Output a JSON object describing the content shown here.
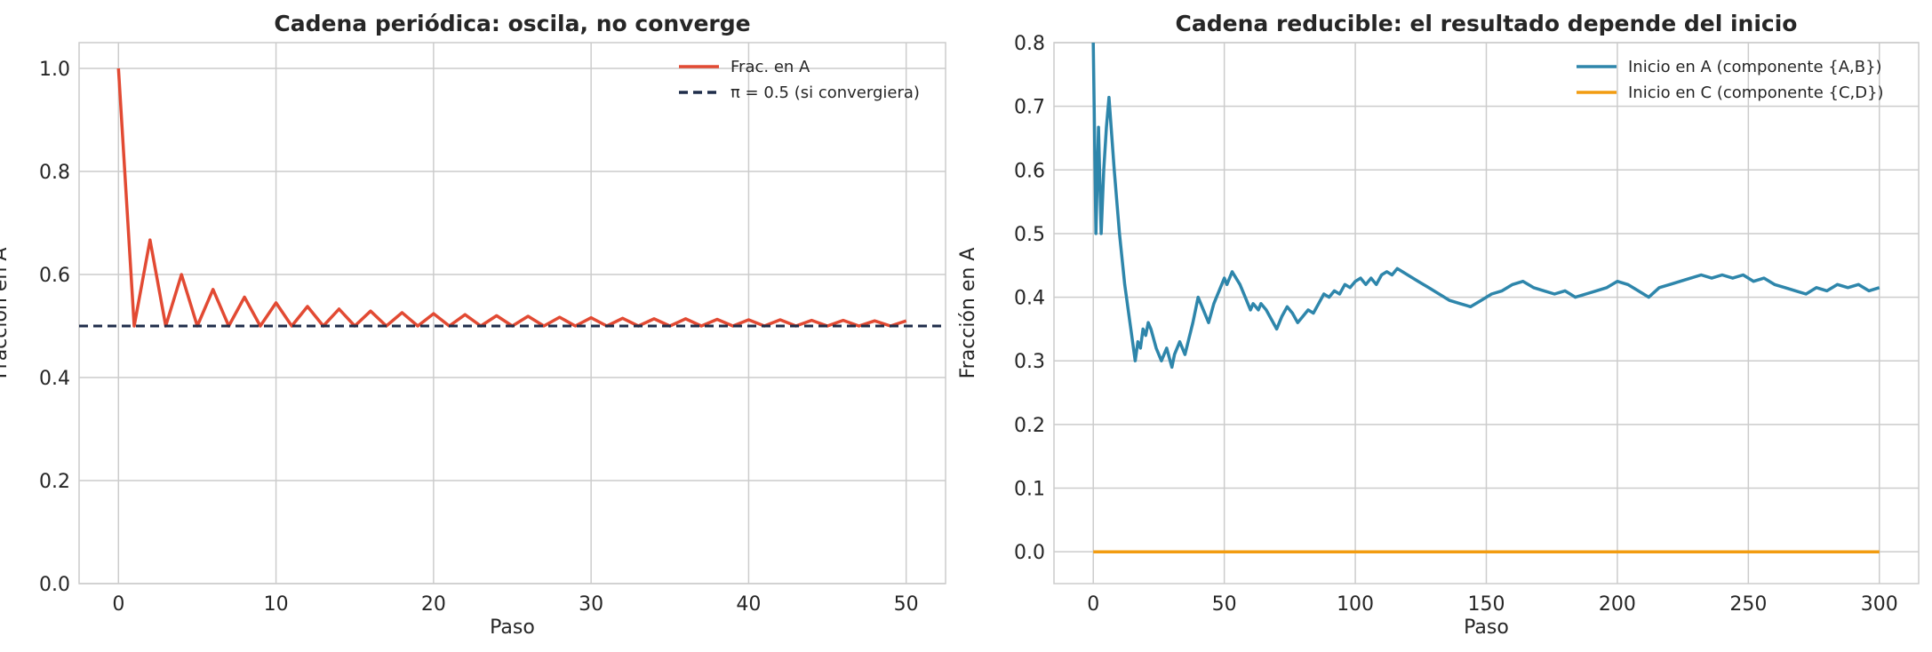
{
  "chart_data": [
    {
      "type": "line",
      "title": "Cadena periódica: oscila, no converge",
      "xlabel": "Paso",
      "ylabel": "Fracción en A",
      "xlim": [
        -2.5,
        52.5
      ],
      "ylim": [
        0.0,
        1.05
      ],
      "xticks": [
        0,
        10,
        20,
        30,
        40,
        50
      ],
      "yticks": [
        0.0,
        0.2,
        0.4,
        0.6,
        0.8,
        1.0
      ],
      "xtick_labels": [
        "0",
        "10",
        "20",
        "30",
        "40",
        "50"
      ],
      "ytick_labels": [
        "0.0",
        "0.2",
        "0.4",
        "0.6",
        "0.8",
        "1.0"
      ],
      "grid": true,
      "legend_position": "top-right",
      "series": [
        {
          "name": "Frac. en A",
          "color": "#e24a33",
          "style": "solid",
          "x": [
            0,
            1,
            2,
            3,
            4,
            5,
            6,
            7,
            8,
            9,
            10,
            11,
            12,
            13,
            14,
            15,
            16,
            17,
            18,
            19,
            20,
            21,
            22,
            23,
            24,
            25,
            26,
            27,
            28,
            29,
            30,
            31,
            32,
            33,
            34,
            35,
            36,
            37,
            38,
            39,
            40,
            41,
            42,
            43,
            44,
            45,
            46,
            47,
            48,
            49,
            50
          ],
          "y": [
            1.0,
            0.5,
            0.667,
            0.5,
            0.6,
            0.5,
            0.571,
            0.5,
            0.556,
            0.5,
            0.545,
            0.5,
            0.538,
            0.5,
            0.533,
            0.5,
            0.529,
            0.5,
            0.526,
            0.5,
            0.524,
            0.5,
            0.522,
            0.5,
            0.52,
            0.5,
            0.519,
            0.5,
            0.517,
            0.5,
            0.516,
            0.5,
            0.515,
            0.5,
            0.514,
            0.5,
            0.514,
            0.5,
            0.513,
            0.5,
            0.512,
            0.5,
            0.512,
            0.5,
            0.511,
            0.5,
            0.511,
            0.5,
            0.51,
            0.5,
            0.51
          ]
        },
        {
          "name": "π = 0.5 (si convergiera)",
          "color": "#1f2d4a",
          "style": "dashed",
          "hline": 0.5
        }
      ]
    },
    {
      "type": "line",
      "title": "Cadena reducible: el resultado depende del inicio",
      "xlabel": "Paso",
      "ylabel": "Fracción en A",
      "xlim": [
        -15,
        315
      ],
      "ylim": [
        -0.05,
        0.8
      ],
      "xticks": [
        0,
        50,
        100,
        150,
        200,
        250,
        300
      ],
      "yticks": [
        0.0,
        0.1,
        0.2,
        0.3,
        0.4,
        0.5,
        0.6,
        0.7,
        0.8
      ],
      "xtick_labels": [
        "0",
        "50",
        "100",
        "150",
        "200",
        "250",
        "300"
      ],
      "ytick_labels": [
        "0.0",
        "0.1",
        "0.2",
        "0.3",
        "0.4",
        "0.5",
        "0.6",
        "0.7",
        "0.8"
      ],
      "grid": true,
      "legend_position": "top-right",
      "series": [
        {
          "name": "Inicio en A (componente {A,B})",
          "color": "#2e86ab",
          "style": "solid",
          "x": [
            0,
            1,
            2,
            3,
            4,
            5,
            6,
            8,
            10,
            12,
            14,
            16,
            17,
            18,
            19,
            20,
            21,
            22,
            24,
            26,
            28,
            30,
            31,
            33,
            35,
            38,
            40,
            42,
            44,
            46,
            48,
            50,
            51,
            53,
            56,
            58,
            60,
            61,
            63,
            64,
            66,
            70,
            72,
            74,
            76,
            78,
            80,
            82,
            84,
            86,
            88,
            90,
            92,
            94,
            96,
            98,
            100,
            102,
            104,
            106,
            108,
            110,
            112,
            114,
            116,
            118,
            120,
            124,
            128,
            132,
            136,
            140,
            144,
            148,
            152,
            156,
            160,
            164,
            168,
            172,
            176,
            180,
            184,
            188,
            192,
            196,
            200,
            204,
            208,
            212,
            216,
            220,
            224,
            228,
            232,
            236,
            240,
            244,
            248,
            252,
            256,
            260,
            264,
            268,
            272,
            276,
            280,
            284,
            288,
            292,
            296,
            300
          ],
          "y": [
            0.8,
            0.5,
            0.667,
            0.5,
            0.6,
            0.667,
            0.714,
            0.6,
            0.5,
            0.42,
            0.36,
            0.3,
            0.33,
            0.32,
            0.35,
            0.34,
            0.36,
            0.35,
            0.32,
            0.3,
            0.32,
            0.29,
            0.31,
            0.33,
            0.31,
            0.36,
            0.4,
            0.38,
            0.36,
            0.39,
            0.41,
            0.43,
            0.42,
            0.44,
            0.42,
            0.4,
            0.38,
            0.39,
            0.38,
            0.39,
            0.38,
            0.35,
            0.37,
            0.385,
            0.375,
            0.36,
            0.37,
            0.38,
            0.375,
            0.39,
            0.405,
            0.4,
            0.41,
            0.405,
            0.42,
            0.415,
            0.425,
            0.43,
            0.42,
            0.43,
            0.42,
            0.435,
            0.44,
            0.435,
            0.445,
            0.44,
            0.435,
            0.425,
            0.415,
            0.405,
            0.395,
            0.39,
            0.385,
            0.395,
            0.405,
            0.41,
            0.42,
            0.425,
            0.415,
            0.41,
            0.405,
            0.41,
            0.4,
            0.405,
            0.41,
            0.415,
            0.425,
            0.42,
            0.41,
            0.4,
            0.415,
            0.42,
            0.425,
            0.43,
            0.435,
            0.43,
            0.435,
            0.43,
            0.435,
            0.425,
            0.43,
            0.42,
            0.415,
            0.41,
            0.405,
            0.415,
            0.41,
            0.42,
            0.415,
            0.42,
            0.41,
            0.415
          ]
        },
        {
          "name": "Inicio en C (componente {C,D})",
          "color": "#f29c11",
          "style": "solid",
          "x": [
            0,
            300
          ],
          "y": [
            0.0,
            0.0
          ]
        }
      ]
    }
  ]
}
